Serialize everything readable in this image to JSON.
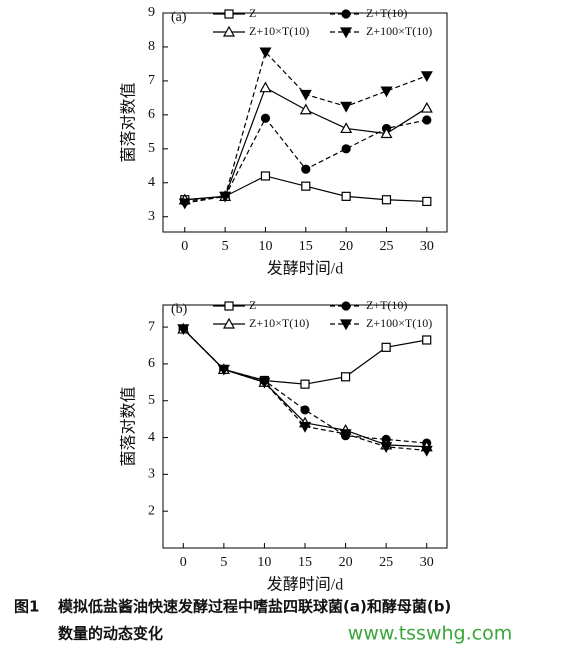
{
  "chart_data": [
    {
      "type": "line",
      "title": "(a)",
      "y_label": "菌落对数值",
      "x_label": "发酵时间/d",
      "x": [
        0,
        5,
        10,
        15,
        20,
        25,
        30
      ],
      "xlim": [
        -2.7,
        32.5
      ],
      "xticks": [
        0,
        5,
        10,
        15,
        20,
        25,
        30
      ],
      "ylim": [
        2.55,
        9
      ],
      "yticks": [
        3,
        4,
        5,
        6,
        7,
        8,
        9
      ],
      "series": [
        {
          "name": "Z",
          "color": "#000000",
          "marker": "square-open",
          "line": "solid",
          "values": [
            3.5,
            3.6,
            4.2,
            3.9,
            3.6,
            3.5,
            3.45
          ]
        },
        {
          "name": "Z+T(10)",
          "color": "#000000",
          "marker": "circle-filled",
          "line": "dashed",
          "values": [
            3.45,
            3.6,
            5.9,
            4.4,
            5.0,
            5.6,
            5.85
          ]
        },
        {
          "name": "Z+10×T(10)",
          "color": "#000000",
          "marker": "triangle-open",
          "line": "solid",
          "values": [
            3.5,
            3.6,
            6.8,
            6.15,
            5.6,
            5.45,
            6.2
          ]
        },
        {
          "name": "Z+100×T(10)",
          "color": "#000000",
          "marker": "triangle-down-filled",
          "line": "dashed",
          "values": [
            3.4,
            3.6,
            7.85,
            6.6,
            6.25,
            6.7,
            7.15
          ]
        }
      ]
    },
    {
      "type": "line",
      "title": "(b)",
      "y_label": "菌落对数值",
      "x_label": "发酵时间/d",
      "x": [
        0,
        5,
        10,
        15,
        20,
        25,
        30
      ],
      "xlim": [
        -2.5,
        32.5
      ],
      "xticks": [
        0,
        5,
        10,
        15,
        20,
        25,
        30
      ],
      "ylim": [
        1,
        7.6
      ],
      "yticks": [
        2,
        3,
        4,
        5,
        6,
        7
      ],
      "series": [
        {
          "name": "Z",
          "color": "#000000",
          "marker": "square-open",
          "line": "solid",
          "values": [
            6.95,
            5.85,
            5.55,
            5.45,
            5.65,
            6.45,
            6.65
          ]
        },
        {
          "name": "Z+T(10)",
          "color": "#000000",
          "marker": "circle-filled",
          "line": "dashed",
          "values": [
            6.95,
            5.85,
            5.55,
            4.75,
            4.05,
            3.95,
            3.85
          ]
        },
        {
          "name": "Z+10×T(10)",
          "color": "#000000",
          "marker": "triangle-open",
          "line": "solid",
          "values": [
            6.95,
            5.85,
            5.5,
            4.4,
            4.2,
            3.8,
            3.75
          ]
        },
        {
          "name": "Z+100×T(10)",
          "color": "#000000",
          "marker": "triangle-down-filled",
          "line": "dashed",
          "values": [
            6.95,
            5.85,
            5.5,
            4.3,
            4.1,
            3.75,
            3.65
          ]
        }
      ]
    }
  ],
  "caption": {
    "label": "图1",
    "line1": "模拟低盐酱油快速发酵过程中嗜盐四联球菌(a)和酵母菌(b)",
    "line2": "数量的动态变化"
  },
  "watermark": "www.tsswhg.com"
}
